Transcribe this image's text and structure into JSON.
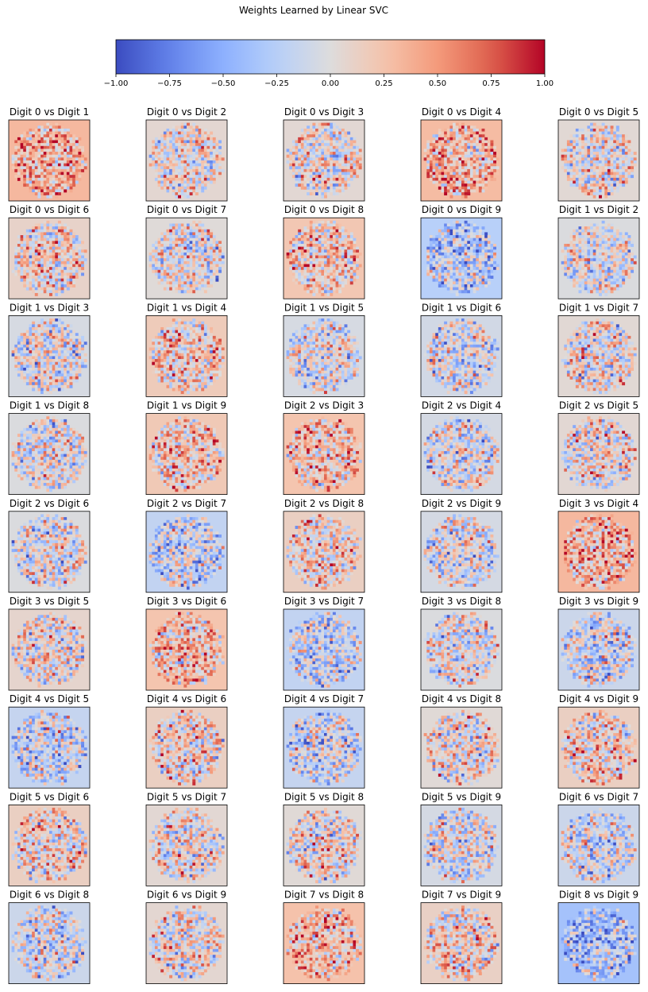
{
  "chart_data": {
    "type": "heatmap",
    "title": "Weights Learned by Linear SVC",
    "colormap": "coolwarm",
    "colors": {
      "low": "#3b4cc0",
      "mid": "#dddcdc",
      "high": "#b40426"
    },
    "colorbar": {
      "orientation": "horizontal",
      "placement": "top",
      "range": [
        -1.0,
        1.0
      ],
      "ticks": [
        -1.0,
        -0.75,
        -0.5,
        -0.25,
        0.0,
        0.25,
        0.5,
        0.75,
        1.0
      ],
      "tick_labels": [
        "−1.00",
        "−0.75",
        "−0.50",
        "−0.25",
        "0.00",
        "0.25",
        "0.50",
        "0.75",
        "1.00"
      ]
    },
    "grid": {
      "rows": 9,
      "cols": 5
    },
    "image_size": [
      28,
      28
    ],
    "panels": [
      {
        "title": "Digit 0 vs Digit 1",
        "background": 0.32
      },
      {
        "title": "Digit 0 vs Digit 2",
        "background": 0.06
      },
      {
        "title": "Digit 0 vs Digit 3",
        "background": 0.05
      },
      {
        "title": "Digit 0 vs Digit 4",
        "background": 0.3
      },
      {
        "title": "Digit 0 vs Digit 5",
        "background": 0.04
      },
      {
        "title": "Digit 0 vs Digit 6",
        "background": 0.1
      },
      {
        "title": "Digit 0 vs Digit 7",
        "background": 0.02
      },
      {
        "title": "Digit 0 vs Digit 8",
        "background": 0.22
      },
      {
        "title": "Digit 0 vs Digit 9",
        "background": -0.25
      },
      {
        "title": "Digit 1 vs Digit 2",
        "background": -0.02
      },
      {
        "title": "Digit 1 vs Digit 3",
        "background": -0.05
      },
      {
        "title": "Digit 1 vs Digit 4",
        "background": 0.18
      },
      {
        "title": "Digit 1 vs Digit 5",
        "background": -0.05
      },
      {
        "title": "Digit 1 vs Digit 6",
        "background": -0.08
      },
      {
        "title": "Digit 1 vs Digit 7",
        "background": 0.04
      },
      {
        "title": "Digit 1 vs Digit 8",
        "background": -0.02
      },
      {
        "title": "Digit 1 vs Digit 9",
        "background": 0.2
      },
      {
        "title": "Digit 2 vs Digit 3",
        "background": 0.24
      },
      {
        "title": "Digit 2 vs Digit 4",
        "background": -0.06
      },
      {
        "title": "Digit 2 vs Digit 5",
        "background": 0.05
      },
      {
        "title": "Digit 2 vs Digit 6",
        "background": -0.02
      },
      {
        "title": "Digit 2 vs Digit 7",
        "background": -0.18
      },
      {
        "title": "Digit 2 vs Digit 8",
        "background": 0.14
      },
      {
        "title": "Digit 2 vs Digit 9",
        "background": -0.06
      },
      {
        "title": "Digit 3 vs Digit 4",
        "background": 0.32
      },
      {
        "title": "Digit 3 vs Digit 5",
        "background": 0.08
      },
      {
        "title": "Digit 3 vs Digit 6",
        "background": 0.24
      },
      {
        "title": "Digit 3 vs Digit 7",
        "background": -0.18
      },
      {
        "title": "Digit 3 vs Digit 8",
        "background": -0.02
      },
      {
        "title": "Digit 3 vs Digit 9",
        "background": -0.12
      },
      {
        "title": "Digit 4 vs Digit 5",
        "background": -0.16
      },
      {
        "title": "Digit 4 vs Digit 6",
        "background": 0.14
      },
      {
        "title": "Digit 4 vs Digit 7",
        "background": -0.16
      },
      {
        "title": "Digit 4 vs Digit 8",
        "background": 0.03
      },
      {
        "title": "Digit 4 vs Digit 9",
        "background": 0.14
      },
      {
        "title": "Digit 5 vs Digit 6",
        "background": 0.14
      },
      {
        "title": "Digit 5 vs Digit 7",
        "background": 0.05
      },
      {
        "title": "Digit 5 vs Digit 8",
        "background": 0.03
      },
      {
        "title": "Digit 5 vs Digit 9",
        "background": -0.06
      },
      {
        "title": "Digit 6 vs Digit 7",
        "background": -0.12
      },
      {
        "title": "Digit 6 vs Digit 8",
        "background": -0.12
      },
      {
        "title": "Digit 6 vs Digit 9",
        "background": 0.06
      },
      {
        "title": "Digit 7 vs Digit 8",
        "background": 0.26
      },
      {
        "title": "Digit 7 vs Digit 9",
        "background": 0.12
      },
      {
        "title": "Digit 8 vs Digit 9",
        "background": -0.36
      }
    ]
  }
}
